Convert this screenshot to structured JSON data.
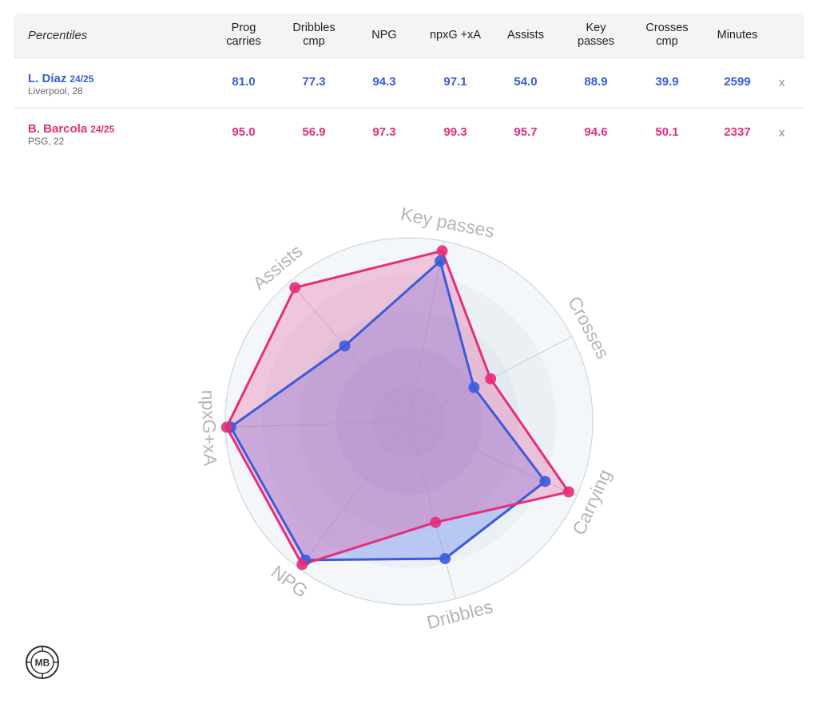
{
  "table": {
    "corner_label": "Percentiles",
    "columns": [
      {
        "line1": "Prog",
        "line2": "carries"
      },
      {
        "line1": "Dribbles",
        "line2": "cmp"
      },
      {
        "line1": "NPG",
        "line2": ""
      },
      {
        "line1": "npxG +xA",
        "line2": ""
      },
      {
        "line1": "Assists",
        "line2": ""
      },
      {
        "line1": "Key",
        "line2": "passes"
      },
      {
        "line1": "Crosses",
        "line2": "cmp"
      },
      {
        "line1": "Minutes",
        "line2": ""
      }
    ],
    "players": [
      {
        "name": "L. Díaz",
        "season": "24/25",
        "team": "Liverpool, 28",
        "color": "#3b5bdb",
        "values": [
          "81.0",
          "77.3",
          "94.3",
          "97.1",
          "54.0",
          "88.9",
          "39.9",
          "2599"
        ],
        "remove": "x"
      },
      {
        "name": "B. Barcola",
        "season": "24/25",
        "team": "PSG, 22",
        "color": "#e62e7a",
        "values": [
          "95.0",
          "56.9",
          "97.3",
          "99.3",
          "95.7",
          "94.6",
          "50.1",
          "2337"
        ],
        "remove": "x"
      }
    ]
  },
  "chart_data": {
    "type": "radar",
    "axes": [
      "Key passes",
      "Crosses",
      "Carrying",
      "Dribbles",
      "NPG",
      "npxG+xA",
      "Assists"
    ],
    "range": [
      0,
      100
    ],
    "series": [
      {
        "name": "L. Díaz",
        "color": "#3b5bdb",
        "fill": "#4a6cf0",
        "values": [
          88.9,
          39.9,
          81.0,
          77.3,
          94.3,
          97.1,
          54.0
        ]
      },
      {
        "name": "B. Barcola",
        "color": "#e62e7a",
        "fill": "#e8559a",
        "values": [
          94.6,
          50.1,
          95.0,
          56.9,
          97.3,
          99.3,
          95.7
        ]
      }
    ]
  },
  "logo": {
    "text": "MB"
  }
}
